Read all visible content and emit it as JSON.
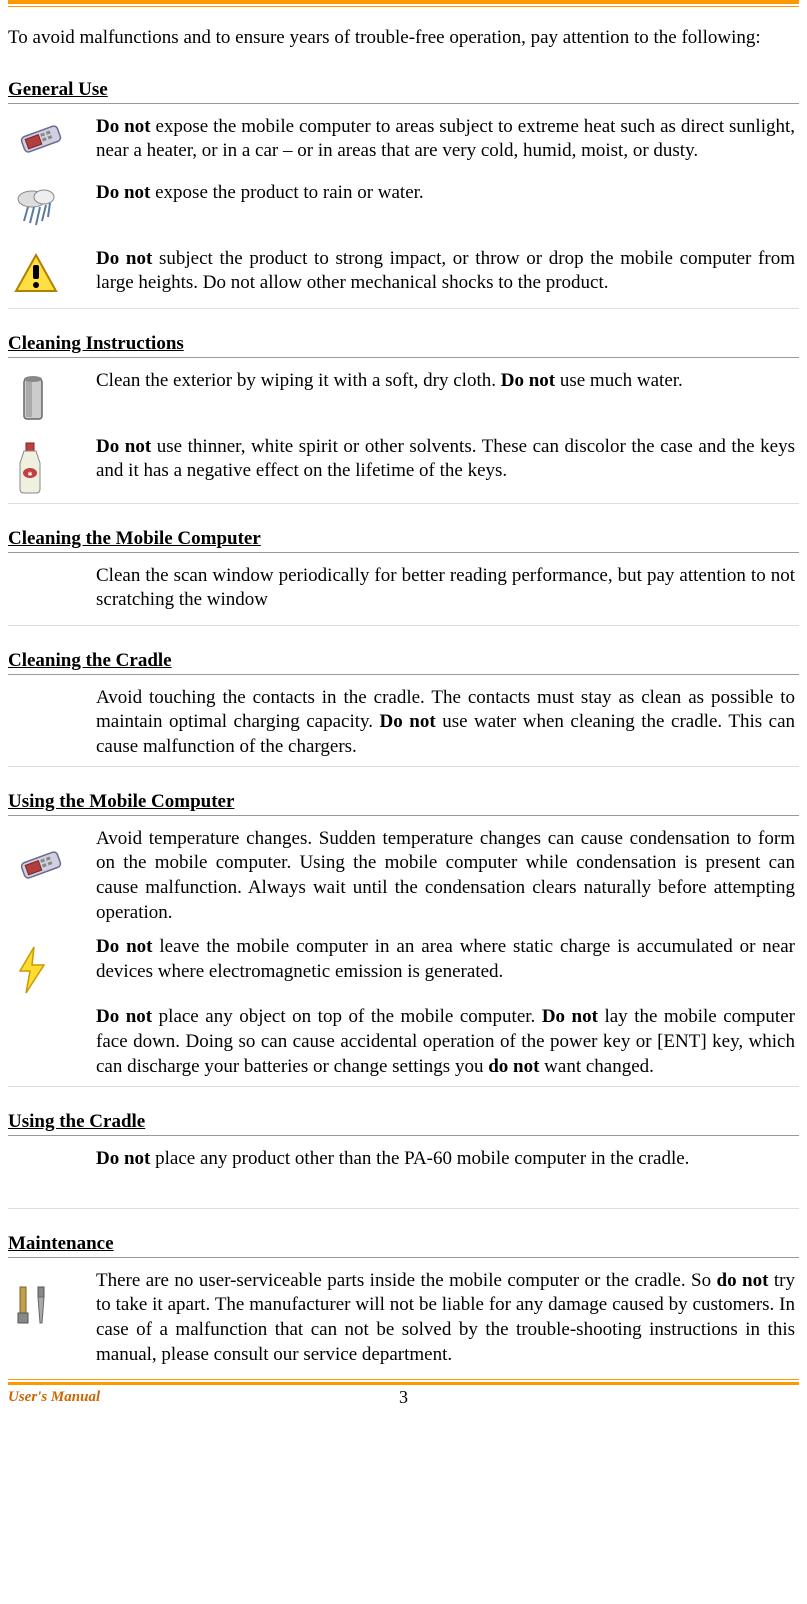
{
  "intro": "To avoid malfunctions and to ensure years of trouble-free operation, pay attention to the following:",
  "sections": {
    "general_use": {
      "heading": "General Use",
      "items": [
        {
          "html": "<b>Do not</b> expose the mobile computer to areas subject to extreme heat such as direct sunlight, near a heater, or in a car – or in areas that are very cold, humid, moist, or dusty."
        },
        {
          "html": "<b>Do not</b> expose the product to rain or water."
        },
        {
          "html": "<b>Do not</b> subject the product to strong impact, or throw or drop the mobile computer from large heights. Do not allow other mechanical shocks to the product."
        }
      ]
    },
    "cleaning_instructions": {
      "heading": "Cleaning Instructions",
      "items": [
        {
          "html": "Clean the exterior by wiping it with a soft, dry cloth. <b>Do not</b> use much water."
        },
        {
          "html": "<b>Do not</b> use thinner, white spirit or other solvents. These can discolor the case and the keys and it has a negative effect on the lifetime of the keys."
        }
      ]
    },
    "cleaning_mobile": {
      "heading": "Cleaning the Mobile Computer",
      "items": [
        {
          "html": "Clean the scan window periodically for better reading performance, but pay attention to not scratching the window"
        }
      ]
    },
    "cleaning_cradle": {
      "heading": "Cleaning the Cradle",
      "items": [
        {
          "html": "Avoid touching the contacts in the cradle. The contacts must stay as clean as possible to maintain optimal charging capacity. <b>Do not</b> use water when cleaning the cradle. This can cause malfunction of the chargers."
        }
      ]
    },
    "using_mobile": {
      "heading": "Using the Mobile Computer",
      "items": [
        {
          "html": "Avoid temperature changes. Sudden temperature changes can cause condensation to form on the mobile computer. Using the mobile computer while condensation is present can cause malfunction. Always wait until the condensation clears naturally before attempting operation."
        },
        {
          "html": "<b>Do not</b> leave the mobile computer in an area where static charge is accumulated or near devices where electromagnetic emission is generated."
        },
        {
          "html": "<b>Do not</b> place any object on top of the mobile computer. <b>Do not</b> lay the mobile computer face down. Doing so can cause accidental operation of the power key or [ENT] key, which can discharge your batteries or change settings you <b>do not</b> want changed."
        }
      ]
    },
    "using_cradle": {
      "heading": "Using the Cradle",
      "items": [
        {
          "html": "<b>Do not</b> place any product other than the PA-60 mobile computer in the cradle."
        }
      ]
    },
    "maintenance": {
      "heading": "Maintenance",
      "items": [
        {
          "html": "There are no user-serviceable parts inside the mobile computer or the cradle. So <b>do not</b> try to take it apart. The manufacturer will not be liable for any damage caused by customers. In case of a malfunction that can not be solved by the trouble-shooting instructions in this manual, please consult our service department."
        }
      ]
    }
  },
  "footer": {
    "left": "User's Manual",
    "page": "3"
  },
  "colors": {
    "accent": "#ff9900",
    "footer_text": "#cc6600"
  }
}
